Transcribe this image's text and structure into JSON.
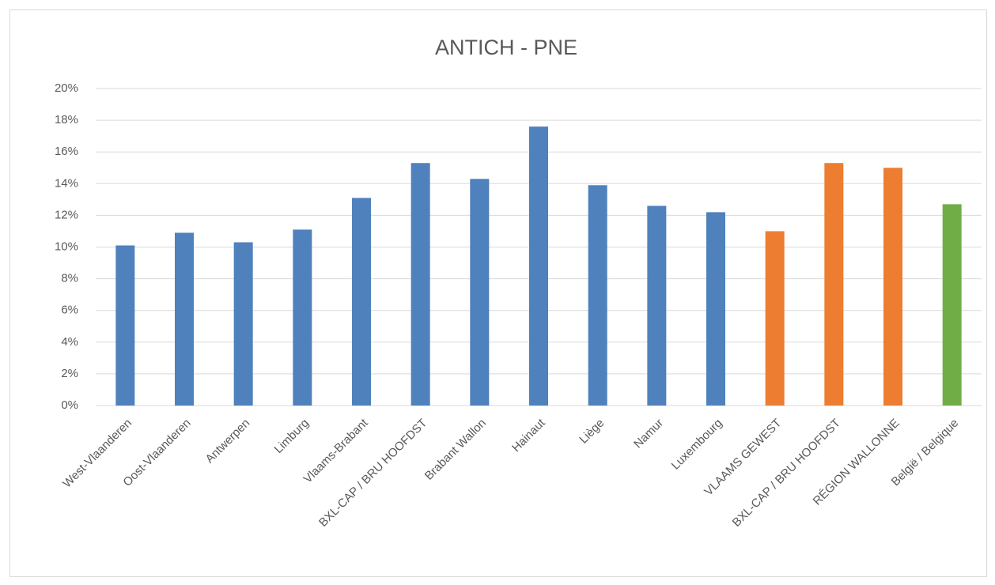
{
  "chart_data": {
    "type": "bar",
    "title": "ANTICH - PNE",
    "categories": [
      "West-Vlaanderen",
      "Oost-Vlaanderen",
      "Antwerpen",
      "Limburg",
      "Vlaams-Brabant",
      "BXL-CAP / BRU HOOFDST",
      "Brabant Wallon",
      "Hainaut",
      "Liège",
      "Namur",
      "Luxembourg",
      "VLAAMS GEWEST",
      "BXL-CAP / BRU HOOFDST",
      "RÉGION WALLONNE",
      "België / Belgique"
    ],
    "values": [
      10.1,
      10.9,
      10.3,
      11.1,
      13.1,
      15.3,
      14.3,
      17.6,
      13.9,
      12.6,
      12.2,
      11.0,
      15.3,
      15.0,
      12.7
    ],
    "colors": [
      "#4f81bd",
      "#4f81bd",
      "#4f81bd",
      "#4f81bd",
      "#4f81bd",
      "#4f81bd",
      "#4f81bd",
      "#4f81bd",
      "#4f81bd",
      "#4f81bd",
      "#4f81bd",
      "#ed7d31",
      "#ed7d31",
      "#ed7d31",
      "#70ad47"
    ],
    "ylim": [
      0,
      20
    ],
    "yticks": [
      {
        "value": 0,
        "label": "0%"
      },
      {
        "value": 2,
        "label": "2%"
      },
      {
        "value": 4,
        "label": "4%"
      },
      {
        "value": 6,
        "label": "6%"
      },
      {
        "value": 8,
        "label": "8%"
      },
      {
        "value": 10,
        "label": "10%"
      },
      {
        "value": 12,
        "label": "12%"
      },
      {
        "value": 14,
        "label": "14%"
      },
      {
        "value": 16,
        "label": "16%"
      },
      {
        "value": 18,
        "label": "18%"
      },
      {
        "value": 20,
        "label": "20%"
      }
    ],
    "grid": true
  }
}
